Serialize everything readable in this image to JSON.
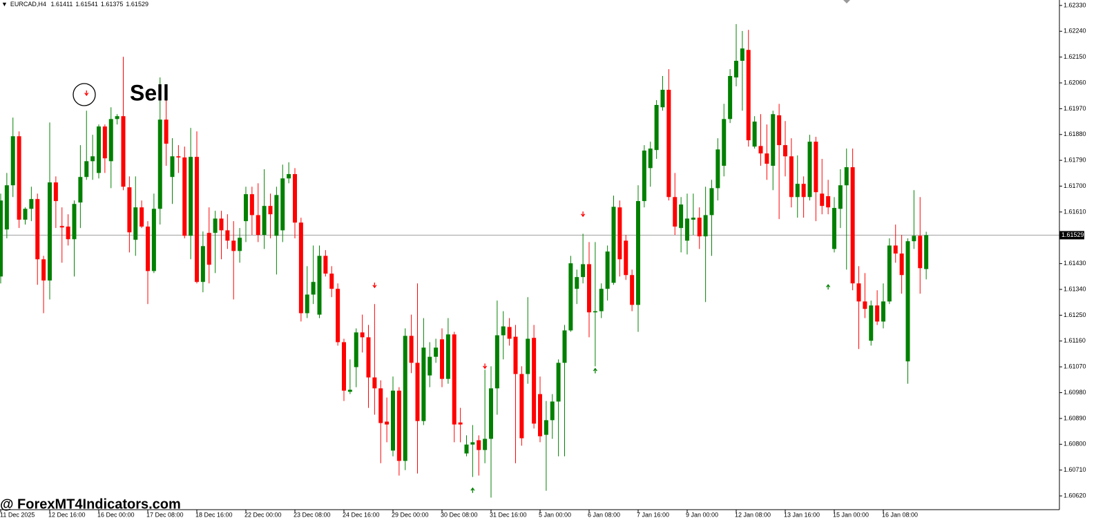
{
  "chart_data": {
    "type": "candlestick",
    "title": "EURCAD,H4",
    "header_values": [
      1.61411,
      1.61541,
      1.61375,
      1.61529
    ],
    "annotation": "Sell",
    "categories": [
      "11 Dec 2025",
      null,
      null,
      null,
      null,
      null,
      null,
      null,
      "12 Dec 16:00",
      null,
      null,
      null,
      null,
      null,
      null,
      null,
      "16 Dec 00:00",
      null,
      null,
      null,
      null,
      null,
      null,
      null,
      "17 Dec 08:00",
      null,
      null,
      null,
      null,
      null,
      null,
      null,
      "18 Dec 16:00",
      null,
      null,
      null,
      null,
      null,
      null,
      null,
      "22 Dec 00:00",
      null,
      null,
      null,
      null,
      null,
      null,
      null,
      "23 Dec 08:00",
      null,
      null,
      null,
      null,
      null,
      null,
      null,
      "24 Dec 16:00",
      null,
      null,
      null,
      null,
      null,
      null,
      null,
      "29 Dec 00:00",
      null,
      null,
      null,
      null,
      null,
      null,
      null,
      "30 Dec 08:00",
      null,
      null,
      null,
      null,
      null,
      null,
      null,
      "31 Dec 16:00",
      null,
      null,
      null,
      null,
      null,
      null,
      null,
      "5 Jan 00:00",
      null,
      null,
      null,
      null,
      null,
      null,
      null,
      "6 Jan 08:00",
      null,
      null,
      null,
      null,
      null,
      null,
      null,
      "7 Jan 16:00",
      null,
      null,
      null,
      null,
      null,
      null,
      null,
      "9 Jan 00:00",
      null,
      null,
      null,
      null,
      null,
      null,
      null,
      "12 Jan 08:00",
      null,
      null,
      null,
      null,
      null,
      null,
      null,
      "13 Jan 16:00",
      null,
      null,
      null,
      null,
      null,
      null,
      null,
      "15 Jan 00:00",
      null,
      null,
      null,
      null,
      null,
      null,
      null,
      "16 Jan 08:00",
      null,
      null,
      null,
      null,
      null,
      null,
      null
    ],
    "open": [
      1.61385,
      1.61549,
      1.61703,
      1.61874,
      1.61583,
      1.61621,
      1.61655,
      1.61445,
      1.61371,
      1.61713,
      1.61561,
      1.61559,
      1.61515,
      1.61643,
      1.61732,
      1.61787,
      1.61746,
      1.61908,
      1.61787,
      1.61934,
      1.61944,
      1.61696,
      1.61513,
      1.61626,
      1.61559,
      1.61404,
      1.61621,
      1.61932,
      1.61732,
      1.61804,
      1.618,
      1.61527,
      1.61802,
      1.61366,
      1.61537,
      1.61537,
      1.61587,
      1.61546,
      1.6151,
      1.61474,
      1.61578,
      1.61672,
      1.61599,
      1.6153,
      1.61631,
      1.61527,
      1.61546,
      1.61727,
      1.61742,
      1.61573,
      1.61257,
      1.61322,
      1.61252,
      1.61457,
      1.61395,
      1.61342,
      1.61156,
      1.60983,
      1.61069,
      1.6119,
      1.61173,
      1.61033,
      1.60995,
      1.60879,
      1.60778,
      1.60987,
      1.60742,
      1.61178,
      1.61084,
      1.60881,
      1.6104,
      1.61105,
      1.61166,
      1.61028,
      1.61183,
      1.60876,
      1.60768,
      1.60799,
      1.60814,
      1.6078,
      1.60819,
      1.60995,
      1.6118,
      1.61209,
      1.61175,
      1.61045,
      1.61045,
      1.61171,
      1.60975,
      1.60833,
      1.60884,
      1.60949,
      1.61084,
      1.61197,
      1.61342,
      1.61383,
      1.61428,
      1.6126,
      1.61264,
      1.61342,
      1.61363,
      1.61626,
      1.6151,
      1.6139,
      1.61286,
      1.61648,
      1.61763,
      1.61826,
      1.61975,
      1.62036,
      1.61662,
      1.61554,
      1.6151,
      1.61583,
      1.6159,
      1.61525,
      1.61599,
      1.61693,
      1.61771,
      1.61934,
      1.62079,
      1.62137,
      1.62175,
      1.61838,
      1.6184,
      1.61814,
      1.61771,
      1.61947,
      1.61843,
      1.61804,
      1.61662,
      1.61708,
      1.61662,
      1.61855,
      1.61674,
      1.61665,
      1.61481,
      1.61621,
      1.61703,
      1.61766,
      1.61361,
      1.61298,
      1.61161,
      1.61284,
      1.61228,
      1.61298,
      1.61493,
      1.61465,
      1.61089,
      1.61508,
      1.61527,
      1.61411
    ],
    "high": [
      1.61674,
      1.61746,
      1.61939,
      1.61891,
      1.61626,
      1.61698,
      1.61674,
      1.61457,
      1.61922,
      1.61734,
      1.61626,
      1.61602,
      1.6165,
      1.61843,
      1.61963,
      1.61879,
      1.61915,
      1.61915,
      1.61975,
      1.61951,
      1.62151,
      1.61734,
      1.61734,
      1.6165,
      1.61578,
      1.61674,
      1.62079,
      1.62012,
      1.61867,
      1.61843,
      1.61838,
      1.61903,
      1.61891,
      1.61542,
      1.61626,
      1.61614,
      1.61614,
      1.61602,
      1.61578,
      1.61554,
      1.61698,
      1.61698,
      1.6171,
      1.61759,
      1.61674,
      1.61698,
      1.61775,
      1.61783,
      1.61763,
      1.6159,
      1.61421,
      1.61493,
      1.61493,
      1.61477,
      1.61421,
      1.61361,
      1.61168,
      1.61096,
      1.61204,
      1.61252,
      1.61216,
      1.61289,
      1.61023,
      1.60963,
      1.61036,
      1.60999,
      1.61204,
      1.61252,
      1.61361,
      1.6124,
      1.61156,
      1.61168,
      1.61204,
      1.6124,
      1.61192,
      1.60927,
      1.60831,
      1.60867,
      1.60831,
      1.6106,
      1.61072,
      1.61301,
      1.61264,
      1.6124,
      1.61216,
      1.61072,
      1.61313,
      1.61216,
      1.61036,
      1.60951,
      1.60975,
      1.61096,
      1.61216,
      1.61457,
      1.61409,
      1.61534,
      1.61505,
      1.61505,
      1.61361,
      1.61493,
      1.61667,
      1.6165,
      1.6153,
      1.61409,
      1.61703,
      1.61843,
      1.61855,
      1.62,
      1.62084,
      1.62108,
      1.61746,
      1.61662,
      1.61674,
      1.61674,
      1.61626,
      1.61698,
      1.61722,
      1.61867,
      1.61987,
      1.62108,
      1.62265,
      1.62241,
      1.62245,
      1.61944,
      1.61951,
      1.61915,
      1.61963,
      1.61987,
      1.61927,
      1.61867,
      1.61807,
      1.61734,
      1.61879,
      1.61872,
      1.61795,
      1.61722,
      1.61662,
      1.61759,
      1.61831,
      1.61831,
      1.61421,
      1.61397,
      1.61301,
      1.61337,
      1.61361,
      1.61518,
      1.61566,
      1.6153,
      1.61518,
      1.61686,
      1.61662,
      1.61541
    ],
    "low": [
      1.61361,
      1.61518,
      1.61662,
      1.61554,
      1.61566,
      1.61578,
      1.61356,
      1.61257,
      1.61305,
      1.61554,
      1.61433,
      1.61493,
      1.61385,
      1.61554,
      1.61722,
      1.61722,
      1.61727,
      1.61746,
      1.61693,
      1.61915,
      1.61686,
      1.61469,
      1.61457,
      1.61554,
      1.61289,
      1.61397,
      1.61566,
      1.61771,
      1.61638,
      1.61746,
      1.61518,
      1.61445,
      1.61361,
      1.6133,
      1.61361,
      1.61397,
      1.61445,
      1.61481,
      1.61305,
      1.61433,
      1.61505,
      1.6153,
      1.61505,
      1.61481,
      1.61518,
      1.61392,
      1.61505,
      1.6171,
      1.61518,
      1.61228,
      1.6124,
      1.61289,
      1.6124,
      1.61385,
      1.61313,
      1.61144,
      1.60951,
      1.60975,
      1.60999,
      1.6112,
      1.60927,
      1.60903,
      1.60734,
      1.60807,
      1.60758,
      1.60691,
      1.6071,
      1.61048,
      1.60698,
      1.60867,
      1.60999,
      1.61084,
      1.60999,
      1.61011,
      1.60807,
      1.60807,
      1.60758,
      1.60686,
      1.60691,
      1.60734,
      1.60614,
      1.60903,
      1.61096,
      1.61144,
      1.60734,
      1.60795,
      1.61011,
      1.60855,
      1.60807,
      1.60638,
      1.60819,
      1.60758,
      1.60758,
      1.61192,
      1.61289,
      1.61361,
      1.61173,
      1.61072,
      1.6124,
      1.61301,
      1.61356,
      1.61385,
      1.61373,
      1.61264,
      1.61192,
      1.61626,
      1.61698,
      1.61795,
      1.61963,
      1.6165,
      1.6153,
      1.61469,
      1.61462,
      1.6153,
      1.61481,
      1.61296,
      1.61457,
      1.6165,
      1.61734,
      1.6192,
      1.62048,
      1.61963,
      1.61838,
      1.61831,
      1.61771,
      1.61722,
      1.61686,
      1.61585,
      1.61734,
      1.61626,
      1.6159,
      1.6159,
      1.6165,
      1.61578,
      1.61602,
      1.61602,
      1.61469,
      1.61554,
      1.61409,
      1.61337,
      1.61132,
      1.6124,
      1.61144,
      1.61216,
      1.61204,
      1.61289,
      1.61433,
      1.61325,
      1.61011,
      1.61481,
      1.61325,
      1.61375
    ],
    "close": [
      1.6165,
      1.61703,
      1.61874,
      1.61583,
      1.61621,
      1.61655,
      1.61445,
      1.61371,
      1.61713,
      1.61648,
      1.61556,
      1.61515,
      1.61638,
      1.61732,
      1.61787,
      1.61804,
      1.61908,
      1.61797,
      1.61934,
      1.61944,
      1.61698,
      1.61539,
      1.61626,
      1.61559,
      1.61404,
      1.61621,
      1.61932,
      1.61848,
      1.61804,
      1.618,
      1.61527,
      1.61802,
      1.61366,
      1.61491,
      1.61426,
      1.61587,
      1.61546,
      1.6151,
      1.61474,
      1.6152,
      1.61672,
      1.61599,
      1.6153,
      1.61631,
      1.61602,
      1.61669,
      1.61727,
      1.61742,
      1.61573,
      1.61257,
      1.61322,
      1.61366,
      1.61457,
      1.61395,
      1.61342,
      1.61156,
      1.60987,
      1.6099,
      1.6119,
      1.61173,
      1.61033,
      1.60995,
      1.60874,
      1.60869,
      1.60987,
      1.60742,
      1.61178,
      1.61084,
      1.60881,
      1.61137,
      1.61105,
      1.61137,
      1.61028,
      1.61183,
      1.60869,
      1.60869,
      1.60799,
      1.60807,
      1.6078,
      1.60819,
      1.60995,
      1.6118,
      1.61211,
      1.61168,
      1.61045,
      1.60821,
      1.61168,
      1.60872,
      1.60828,
      1.60884,
      1.60949,
      1.61084,
      1.61197,
      1.61431,
      1.61383,
      1.61428,
      1.6126,
      1.61264,
      1.61342,
      1.61472,
      1.61628,
      1.61445,
      1.6139,
      1.61286,
      1.61648,
      1.61824,
      1.61831,
      1.61983,
      1.62036,
      1.61662,
      1.61559,
      1.61636,
      1.61587,
      1.6159,
      1.61525,
      1.61599,
      1.61693,
      1.61828,
      1.61934,
      1.62084,
      1.62137,
      1.6218,
      1.6186,
      1.61925,
      1.61814,
      1.61778,
      1.61951,
      1.61843,
      1.61804,
      1.61662,
      1.61708,
      1.61662,
      1.61855,
      1.61679,
      1.61631,
      1.61626,
      1.61624,
      1.61703,
      1.61766,
      1.61361,
      1.61298,
      1.61272,
      1.61284,
      1.61228,
      1.61298,
      1.61493,
      1.61465,
      1.6139,
      1.61508,
      1.61527,
      1.61414,
      1.61529
    ],
    "up_color": "#008000",
    "down_color": "#ff0000",
    "ylim": [
      1.60572,
      1.62349
    ],
    "yticks": [
      {
        "value": 1.6233,
        "label": "1.62330"
      },
      {
        "value": 1.6224,
        "label": "1.62240"
      },
      {
        "value": 1.6215,
        "label": "1.62150"
      },
      {
        "value": 1.6206,
        "label": "1.62060"
      },
      {
        "value": 1.6197,
        "label": "1.61970"
      },
      {
        "value": 1.6188,
        "label": "1.61880"
      },
      {
        "value": 1.6179,
        "label": "1.61790"
      },
      {
        "value": 1.617,
        "label": "1.61700"
      },
      {
        "value": 1.6161,
        "label": "1.61610"
      },
      {
        "value": 1.6143,
        "label": "1.61430"
      },
      {
        "value": 1.6134,
        "label": "1.61340"
      },
      {
        "value": 1.6125,
        "label": "1.61250"
      },
      {
        "value": 1.6116,
        "label": "1.61160"
      },
      {
        "value": 1.6107,
        "label": "1.61070"
      },
      {
        "value": 1.6098,
        "label": "1.60980"
      },
      {
        "value": 1.6089,
        "label": "1.60890"
      },
      {
        "value": 1.608,
        "label": "1.60800"
      },
      {
        "value": 1.6071,
        "label": "1.60710"
      },
      {
        "value": 1.6062,
        "label": "1.60620"
      }
    ],
    "current_price": 1.61529,
    "sell_signals": {
      "x": [
        14,
        61,
        79,
        95
      ],
      "values": [
        1.62024,
        1.61354,
        1.61072,
        1.61602
      ],
      "color": "#ff0000"
    },
    "buy_signals": {
      "x": [
        77,
        97,
        135
      ],
      "values": [
        1.6064,
        1.61057,
        1.61349
      ],
      "color": "#008000"
    }
  },
  "watermark": "@ ForexMT4Indicators.com"
}
